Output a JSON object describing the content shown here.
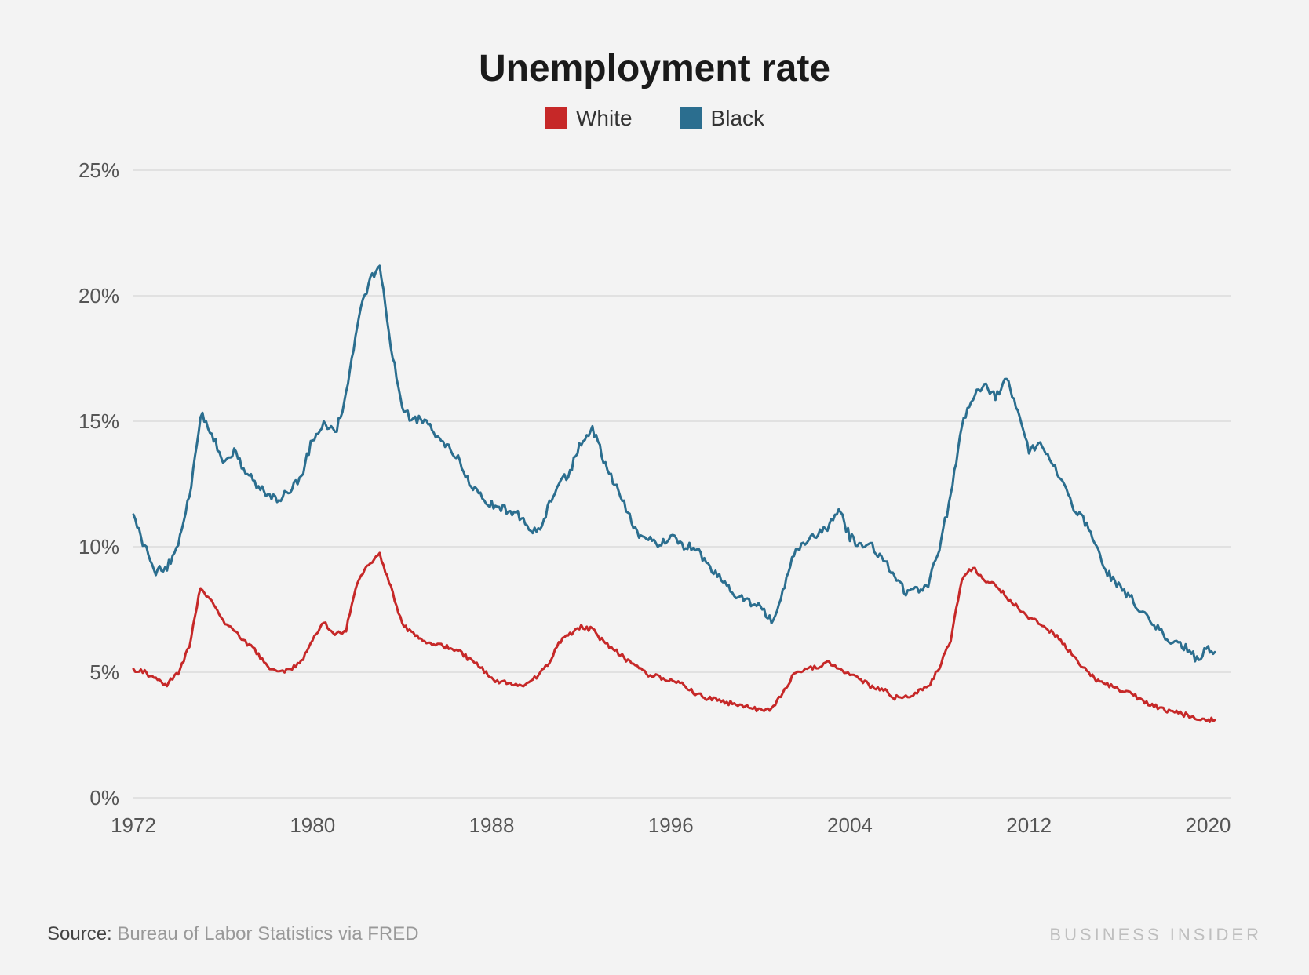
{
  "chart": {
    "type": "line",
    "title": "Unemployment rate",
    "title_fontsize": 48,
    "background_color": "#f3f3f3",
    "grid_color": "#cfcfcf",
    "axis_label_color": "#555555",
    "axis_label_fontsize": 26,
    "line_width": 3,
    "x": {
      "min": 1972,
      "max": 2021,
      "ticks": [
        1972,
        1980,
        1988,
        1996,
        2004,
        2012,
        2020
      ]
    },
    "y": {
      "min": 0,
      "max": 25,
      "ticks": [
        0,
        5,
        10,
        15,
        20,
        25
      ],
      "suffix": "%"
    },
    "legend": [
      {
        "key": "white",
        "label": "White",
        "color": "#c62828"
      },
      {
        "key": "black",
        "label": "Black",
        "color": "#2b6e8f"
      }
    ],
    "series": {
      "white": [
        [
          1972,
          5.1
        ],
        [
          1972.5,
          5.0
        ],
        [
          1973,
          4.7
        ],
        [
          1973.5,
          4.5
        ],
        [
          1974,
          5.0
        ],
        [
          1974.5,
          6.0
        ],
        [
          1975,
          8.4
        ],
        [
          1975.5,
          7.8
        ],
        [
          1976,
          7.0
        ],
        [
          1976.5,
          6.7
        ],
        [
          1977,
          6.2
        ],
        [
          1977.5,
          5.8
        ],
        [
          1978,
          5.2
        ],
        [
          1978.5,
          5.0
        ],
        [
          1979,
          5.1
        ],
        [
          1979.5,
          5.4
        ],
        [
          1980,
          6.3
        ],
        [
          1980.5,
          7.0
        ],
        [
          1981,
          6.5
        ],
        [
          1981.5,
          6.7
        ],
        [
          1982,
          8.6
        ],
        [
          1982.5,
          9.3
        ],
        [
          1983,
          9.7
        ],
        [
          1983.5,
          8.4
        ],
        [
          1984,
          6.9
        ],
        [
          1984.5,
          6.5
        ],
        [
          1985,
          6.2
        ],
        [
          1985.5,
          6.1
        ],
        [
          1986,
          6.0
        ],
        [
          1986.5,
          5.9
        ],
        [
          1987,
          5.5
        ],
        [
          1987.5,
          5.2
        ],
        [
          1988,
          4.7
        ],
        [
          1988.5,
          4.6
        ],
        [
          1989,
          4.5
        ],
        [
          1989.5,
          4.5
        ],
        [
          1990,
          4.8
        ],
        [
          1990.5,
          5.3
        ],
        [
          1991,
          6.2
        ],
        [
          1991.5,
          6.5
        ],
        [
          1992,
          6.8
        ],
        [
          1992.5,
          6.7
        ],
        [
          1993,
          6.2
        ],
        [
          1993.5,
          5.9
        ],
        [
          1994,
          5.5
        ],
        [
          1994.5,
          5.2
        ],
        [
          1995,
          4.9
        ],
        [
          1995.5,
          4.8
        ],
        [
          1996,
          4.7
        ],
        [
          1996.5,
          4.6
        ],
        [
          1997,
          4.2
        ],
        [
          1997.5,
          4.0
        ],
        [
          1998,
          3.9
        ],
        [
          1998.5,
          3.8
        ],
        [
          1999,
          3.7
        ],
        [
          1999.5,
          3.6
        ],
        [
          2000,
          3.5
        ],
        [
          2000.5,
          3.5
        ],
        [
          2001,
          4.2
        ],
        [
          2001.5,
          4.9
        ],
        [
          2002,
          5.1
        ],
        [
          2002.5,
          5.2
        ],
        [
          2003,
          5.4
        ],
        [
          2003.5,
          5.2
        ],
        [
          2004,
          4.9
        ],
        [
          2004.5,
          4.7
        ],
        [
          2005,
          4.4
        ],
        [
          2005.5,
          4.3
        ],
        [
          2006,
          4.0
        ],
        [
          2006.5,
          4.0
        ],
        [
          2007,
          4.2
        ],
        [
          2007.5,
          4.4
        ],
        [
          2008,
          5.2
        ],
        [
          2008.5,
          6.3
        ],
        [
          2009,
          8.7
        ],
        [
          2009.5,
          9.2
        ],
        [
          2010,
          8.7
        ],
        [
          2010.5,
          8.5
        ],
        [
          2011,
          8.0
        ],
        [
          2011.5,
          7.6
        ],
        [
          2012,
          7.2
        ],
        [
          2012.5,
          6.9
        ],
        [
          2013,
          6.6
        ],
        [
          2013.5,
          6.2
        ],
        [
          2014,
          5.6
        ],
        [
          2014.5,
          5.1
        ],
        [
          2015,
          4.7
        ],
        [
          2015.5,
          4.5
        ],
        [
          2016,
          4.3
        ],
        [
          2016.5,
          4.2
        ],
        [
          2017,
          3.9
        ],
        [
          2017.5,
          3.7
        ],
        [
          2018,
          3.5
        ],
        [
          2018.5,
          3.4
        ],
        [
          2019,
          3.3
        ],
        [
          2019.5,
          3.2
        ],
        [
          2020,
          3.1
        ],
        [
          2020.3,
          3.1
        ]
      ],
      "black": [
        [
          1972,
          11.2
        ],
        [
          1972.5,
          10.0
        ],
        [
          1973,
          9.0
        ],
        [
          1973.5,
          9.2
        ],
        [
          1974,
          10.0
        ],
        [
          1974.5,
          12.0
        ],
        [
          1975,
          15.3
        ],
        [
          1975.5,
          14.5
        ],
        [
          1976,
          13.5
        ],
        [
          1976.5,
          13.8
        ],
        [
          1977,
          13.0
        ],
        [
          1977.5,
          12.5
        ],
        [
          1978,
          12.0
        ],
        [
          1978.5,
          11.9
        ],
        [
          1979,
          12.3
        ],
        [
          1979.5,
          12.8
        ],
        [
          1980,
          14.3
        ],
        [
          1980.5,
          15.0
        ],
        [
          1981,
          14.5
        ],
        [
          1981.5,
          16.0
        ],
        [
          1982,
          18.9
        ],
        [
          1982.5,
          20.5
        ],
        [
          1983,
          21.2
        ],
        [
          1983.5,
          18.0
        ],
        [
          1984,
          15.5
        ],
        [
          1984.5,
          15.0
        ],
        [
          1985,
          15.1
        ],
        [
          1985.5,
          14.5
        ],
        [
          1986,
          14.0
        ],
        [
          1986.5,
          13.5
        ],
        [
          1987,
          12.5
        ],
        [
          1987.5,
          12.0
        ],
        [
          1988,
          11.7
        ],
        [
          1988.5,
          11.5
        ],
        [
          1989,
          11.4
        ],
        [
          1989.5,
          11.0
        ],
        [
          1990,
          10.5
        ],
        [
          1990.5,
          11.5
        ],
        [
          1991,
          12.5
        ],
        [
          1991.5,
          13.0
        ],
        [
          1992,
          14.2
        ],
        [
          1992.5,
          14.7
        ],
        [
          1993,
          13.5
        ],
        [
          1993.5,
          12.5
        ],
        [
          1994,
          11.5
        ],
        [
          1994.5,
          10.5
        ],
        [
          1995,
          10.4
        ],
        [
          1995.5,
          10.0
        ],
        [
          1996,
          10.5
        ],
        [
          1996.5,
          10.0
        ],
        [
          1997,
          10.0
        ],
        [
          1997.5,
          9.5
        ],
        [
          1998,
          8.9
        ],
        [
          1998.5,
          8.5
        ],
        [
          1999,
          8.0
        ],
        [
          1999.5,
          7.8
        ],
        [
          2000,
          7.6
        ],
        [
          2000.5,
          7.0
        ],
        [
          2001,
          8.2
        ],
        [
          2001.5,
          9.8
        ],
        [
          2002,
          10.2
        ],
        [
          2002.5,
          10.5
        ],
        [
          2003,
          10.8
        ],
        [
          2003.5,
          11.5
        ],
        [
          2004,
          10.4
        ],
        [
          2004.5,
          10.0
        ],
        [
          2005,
          10.0
        ],
        [
          2005.5,
          9.5
        ],
        [
          2006,
          8.9
        ],
        [
          2006.5,
          8.2
        ],
        [
          2007,
          8.3
        ],
        [
          2007.5,
          8.5
        ],
        [
          2008,
          10.0
        ],
        [
          2008.5,
          12.0
        ],
        [
          2009,
          14.8
        ],
        [
          2009.5,
          16.0
        ],
        [
          2010,
          16.5
        ],
        [
          2010.5,
          16.0
        ],
        [
          2011,
          16.7
        ],
        [
          2011.5,
          15.5
        ],
        [
          2012,
          13.8
        ],
        [
          2012.5,
          14.0
        ],
        [
          2013,
          13.5
        ],
        [
          2013.5,
          12.5
        ],
        [
          2014,
          11.5
        ],
        [
          2014.5,
          11.0
        ],
        [
          2015,
          10.0
        ],
        [
          2015.5,
          9.0
        ],
        [
          2016,
          8.4
        ],
        [
          2016.5,
          8.0
        ],
        [
          2017,
          7.5
        ],
        [
          2017.5,
          7.0
        ],
        [
          2018,
          6.5
        ],
        [
          2018.5,
          6.2
        ],
        [
          2019,
          6.0
        ],
        [
          2019.5,
          5.5
        ],
        [
          2020,
          6.0
        ],
        [
          2020.3,
          5.8
        ]
      ]
    }
  },
  "footer": {
    "source_label": "Source:",
    "source_text": "Bureau of Labor Statistics via FRED",
    "brand": "BUSINESS INSIDER"
  }
}
